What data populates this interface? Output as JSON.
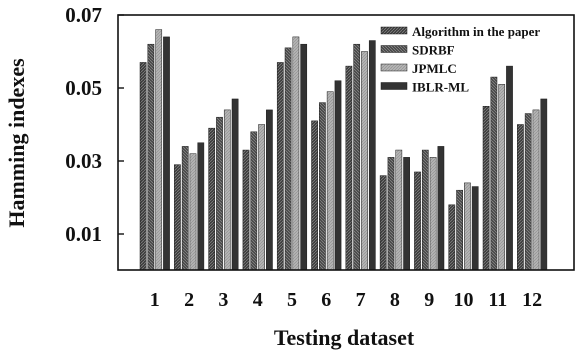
{
  "chart_data": {
    "type": "bar",
    "title": "",
    "xlabel": "Testing dataset",
    "ylabel": "Hamming indexes",
    "categories": [
      "1",
      "2",
      "3",
      "4",
      "5",
      "6",
      "7",
      "8",
      "9",
      "10",
      "11",
      "12"
    ],
    "ylim": [
      0.01,
      0.07
    ],
    "yticks": [
      0.01,
      0.03,
      0.05,
      0.07
    ],
    "ytick_labels": [
      "0.01",
      "0.03",
      "0.05",
      "0.07"
    ],
    "grid": false,
    "legend_position": "top-right",
    "series": [
      {
        "name": "Algorithm in the paper",
        "color": "#3a3a3a",
        "pattern": "hatch-dark",
        "values": [
          0.057,
          0.029,
          0.039,
          0.033,
          0.057,
          0.041,
          0.056,
          0.026,
          0.027,
          0.018,
          0.045,
          0.04
        ]
      },
      {
        "name": "SDRBF",
        "color": "#4a4a4a",
        "pattern": "hatch-mid",
        "values": [
          0.062,
          0.034,
          0.042,
          0.038,
          0.061,
          0.046,
          0.062,
          0.031,
          0.033,
          0.022,
          0.053,
          0.043
        ]
      },
      {
        "name": "JPMLC",
        "color": "#a8a8a8",
        "pattern": "hatch-light",
        "values": [
          0.066,
          0.032,
          0.044,
          0.04,
          0.064,
          0.049,
          0.06,
          0.033,
          0.031,
          0.024,
          0.051,
          0.044
        ]
      },
      {
        "name": "IBLR-ML",
        "color": "#333333",
        "pattern": "solid",
        "values": [
          0.064,
          0.035,
          0.047,
          0.044,
          0.062,
          0.052,
          0.063,
          0.031,
          0.034,
          0.023,
          0.056,
          0.047
        ]
      }
    ]
  }
}
